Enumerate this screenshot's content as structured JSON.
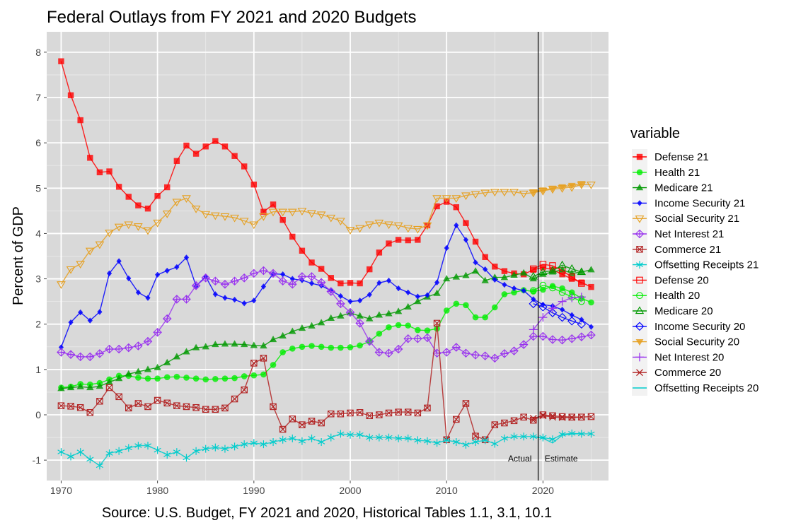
{
  "chart_data": {
    "type": "line",
    "title": "Federal Outlays from FY 2021 and 2020 Budgets",
    "caption": "Source: U.S. Budget, FY 2021 and 2020, Historical Tables 1.1, 3.1, 10.1",
    "xlabel": "",
    "ylabel": "Percent of GDP",
    "xlim": [
      1968.5,
      2026.8
    ],
    "ylim": [
      -1.45,
      8.45
    ],
    "x_ticks": [
      1970,
      1980,
      1990,
      2000,
      2010,
      2020
    ],
    "x_tick_labels": [
      "1970",
      "1980",
      "1990",
      "2000",
      "2010",
      "2020"
    ],
    "y_ticks": [
      -1,
      0,
      1,
      2,
      3,
      4,
      5,
      6,
      7,
      8
    ],
    "y_tick_labels": [
      "-1",
      "0",
      "1",
      "2",
      "3",
      "4",
      "5",
      "6",
      "7",
      "8"
    ],
    "grid": true,
    "legend_title": "variable",
    "legend_position": "right",
    "vline": {
      "x": 2019.5
    },
    "annotations": [
      {
        "text": "Actual",
        "x": 2017.6,
        "y": -1.03
      },
      {
        "text": "Estimate",
        "x": 2021.9,
        "y": -1.03
      }
    ],
    "series": [
      {
        "name": "Defense 21",
        "color": "#ff0000",
        "shape": "square-filled",
        "x": [
          1970,
          1971,
          1972,
          1973,
          1974,
          1975,
          1976,
          1977,
          1978,
          1979,
          1980,
          1981,
          1982,
          1983,
          1984,
          1985,
          1986,
          1987,
          1988,
          1989,
          1990,
          1991,
          1992,
          1993,
          1994,
          1995,
          1996,
          1997,
          1998,
          1999,
          2000,
          2001,
          2002,
          2003,
          2004,
          2005,
          2006,
          2007,
          2008,
          2009,
          2010,
          2011,
          2012,
          2013,
          2014,
          2015,
          2016,
          2017,
          2018,
          2019,
          2020,
          2021,
          2022,
          2023,
          2024,
          2025
        ],
        "values": [
          7.8,
          7.05,
          6.5,
          5.67,
          5.35,
          5.37,
          5.03,
          4.81,
          4.62,
          4.55,
          4.83,
          5.02,
          5.6,
          5.94,
          5.76,
          5.92,
          6.04,
          5.92,
          5.71,
          5.48,
          5.08,
          4.48,
          4.64,
          4.3,
          3.93,
          3.62,
          3.36,
          3.22,
          3.02,
          2.9,
          2.91,
          2.9,
          3.21,
          3.58,
          3.78,
          3.86,
          3.85,
          3.86,
          4.18,
          4.6,
          4.7,
          4.58,
          4.23,
          3.82,
          3.48,
          3.27,
          3.17,
          3.12,
          3.1,
          3.2,
          3.25,
          3.2,
          3.1,
          3.0,
          2.92,
          2.82
        ]
      },
      {
        "name": "Health 21",
        "color": "#00ee00",
        "shape": "circle-filled",
        "x": [
          1970,
          1971,
          1972,
          1973,
          1974,
          1975,
          1976,
          1977,
          1978,
          1979,
          1980,
          1981,
          1982,
          1983,
          1984,
          1985,
          1986,
          1987,
          1988,
          1989,
          1990,
          1991,
          1992,
          1993,
          1994,
          1995,
          1996,
          1997,
          1998,
          1999,
          2000,
          2001,
          2002,
          2003,
          2004,
          2005,
          2006,
          2007,
          2008,
          2009,
          2010,
          2011,
          2012,
          2013,
          2014,
          2015,
          2016,
          2017,
          2018,
          2019,
          2020,
          2021,
          2022,
          2023,
          2024,
          2025
        ],
        "values": [
          0.6,
          0.62,
          0.68,
          0.67,
          0.7,
          0.78,
          0.86,
          0.86,
          0.82,
          0.8,
          0.8,
          0.83,
          0.84,
          0.82,
          0.8,
          0.78,
          0.79,
          0.8,
          0.81,
          0.85,
          0.87,
          0.89,
          1.1,
          1.38,
          1.46,
          1.5,
          1.52,
          1.5,
          1.48,
          1.48,
          1.49,
          1.53,
          1.62,
          1.79,
          1.93,
          1.98,
          1.97,
          1.87,
          1.86,
          1.9,
          2.3,
          2.45,
          2.42,
          2.15,
          2.15,
          2.37,
          2.66,
          2.7,
          2.75,
          2.72,
          2.76,
          2.84,
          2.79,
          2.7,
          2.57,
          2.48
        ]
      },
      {
        "name": "Medicare 21",
        "color": "#009900",
        "shape": "triangle-filled",
        "x": [
          1970,
          1971,
          1972,
          1973,
          1974,
          1975,
          1976,
          1977,
          1978,
          1979,
          1980,
          1981,
          1982,
          1983,
          1984,
          1985,
          1986,
          1987,
          1988,
          1989,
          1990,
          1991,
          1992,
          1993,
          1994,
          1995,
          1996,
          1997,
          1998,
          1999,
          2000,
          2001,
          2002,
          2003,
          2004,
          2005,
          2006,
          2007,
          2008,
          2009,
          2010,
          2011,
          2012,
          2013,
          2014,
          2015,
          2016,
          2017,
          2018,
          2019,
          2020,
          2021,
          2022,
          2023,
          2024,
          2025
        ],
        "values": [
          0.58,
          0.6,
          0.62,
          0.6,
          0.63,
          0.72,
          0.8,
          0.9,
          0.95,
          1.0,
          1.04,
          1.15,
          1.28,
          1.39,
          1.48,
          1.5,
          1.55,
          1.56,
          1.56,
          1.55,
          1.53,
          1.52,
          1.66,
          1.74,
          1.84,
          1.91,
          1.96,
          2.03,
          2.13,
          2.18,
          2.25,
          2.18,
          2.12,
          2.2,
          2.23,
          2.28,
          2.38,
          2.5,
          2.6,
          2.68,
          3.0,
          3.04,
          3.07,
          3.17,
          2.96,
          3.03,
          3.03,
          3.08,
          3.13,
          3.0,
          3.1,
          3.15,
          3.2,
          3.12,
          3.15,
          3.2
        ]
      },
      {
        "name": "Income Security 21",
        "color": "#0000ff",
        "shape": "diamond-filled",
        "x": [
          1970,
          1971,
          1972,
          1973,
          1974,
          1975,
          1976,
          1977,
          1978,
          1979,
          1980,
          1981,
          1982,
          1983,
          1984,
          1985,
          1986,
          1987,
          1988,
          1989,
          1990,
          1991,
          1992,
          1993,
          1994,
          1995,
          1996,
          1997,
          1998,
          1999,
          2000,
          2001,
          2002,
          2003,
          2004,
          2005,
          2006,
          2007,
          2008,
          2009,
          2010,
          2011,
          2012,
          2013,
          2014,
          2015,
          2016,
          2017,
          2018,
          2019,
          2020,
          2021,
          2022,
          2023,
          2024,
          2025
        ],
        "values": [
          1.49,
          2.04,
          2.26,
          2.08,
          2.27,
          3.12,
          3.39,
          3.01,
          2.7,
          2.58,
          3.09,
          3.18,
          3.26,
          3.47,
          2.84,
          3.05,
          2.66,
          2.58,
          2.54,
          2.46,
          2.52,
          2.83,
          3.11,
          3.1,
          3.0,
          2.97,
          2.9,
          2.85,
          2.74,
          2.62,
          2.5,
          2.52,
          2.65,
          2.91,
          2.96,
          2.79,
          2.7,
          2.61,
          2.64,
          2.92,
          3.68,
          4.18,
          3.86,
          3.36,
          3.21,
          2.98,
          2.87,
          2.79,
          2.74,
          2.55,
          2.43,
          2.4,
          2.32,
          2.2,
          2.1,
          1.94
        ]
      },
      {
        "name": "Social Security 21",
        "color": "#e6a020",
        "shape": "triangle-down-open",
        "x": [
          1970,
          1971,
          1972,
          1973,
          1974,
          1975,
          1976,
          1977,
          1978,
          1979,
          1980,
          1981,
          1982,
          1983,
          1984,
          1985,
          1986,
          1987,
          1988,
          1989,
          1990,
          1991,
          1992,
          1993,
          1994,
          1995,
          1996,
          1997,
          1998,
          1999,
          2000,
          2001,
          2002,
          2003,
          2004,
          2005,
          2006,
          2007,
          2008,
          2009,
          2010,
          2011,
          2012,
          2013,
          2014,
          2015,
          2016,
          2017,
          2018,
          2019,
          2020,
          2021,
          2022,
          2023,
          2024,
          2025
        ],
        "values": [
          2.88,
          3.21,
          3.33,
          3.62,
          3.76,
          4.02,
          4.15,
          4.2,
          4.16,
          4.07,
          4.24,
          4.44,
          4.7,
          4.78,
          4.55,
          4.43,
          4.4,
          4.38,
          4.35,
          4.28,
          4.2,
          4.38,
          4.48,
          4.48,
          4.48,
          4.5,
          4.45,
          4.42,
          4.35,
          4.28,
          4.08,
          4.12,
          4.2,
          4.24,
          4.2,
          4.18,
          4.12,
          4.1,
          4.18,
          4.78,
          4.78,
          4.78,
          4.84,
          4.87,
          4.9,
          4.92,
          4.92,
          4.92,
          4.88,
          4.9,
          4.94,
          4.98,
          5.0,
          5.02,
          5.08,
          5.08
        ]
      },
      {
        "name": "Net Interest 21",
        "color": "#9933ee",
        "shape": "diamond-plus",
        "x": [
          1970,
          1971,
          1972,
          1973,
          1974,
          1975,
          1976,
          1977,
          1978,
          1979,
          1980,
          1981,
          1982,
          1983,
          1984,
          1985,
          1986,
          1987,
          1988,
          1989,
          1990,
          1991,
          1992,
          1993,
          1994,
          1995,
          1996,
          1997,
          1998,
          1999,
          2000,
          2001,
          2002,
          2003,
          2004,
          2005,
          2006,
          2007,
          2008,
          2009,
          2010,
          2011,
          2012,
          2013,
          2014,
          2015,
          2016,
          2017,
          2018,
          2019,
          2020,
          2021,
          2022,
          2023,
          2024,
          2025
        ],
        "values": [
          1.38,
          1.33,
          1.28,
          1.28,
          1.35,
          1.45,
          1.45,
          1.48,
          1.52,
          1.62,
          1.82,
          2.12,
          2.55,
          2.55,
          2.85,
          3.02,
          2.95,
          2.88,
          2.95,
          3.02,
          3.12,
          3.18,
          3.12,
          2.95,
          2.88,
          3.05,
          3.05,
          2.92,
          2.72,
          2.45,
          2.26,
          2.02,
          1.62,
          1.38,
          1.36,
          1.45,
          1.68,
          1.68,
          1.7,
          1.36,
          1.38,
          1.49,
          1.36,
          1.32,
          1.3,
          1.25,
          1.35,
          1.41,
          1.55,
          1.73,
          1.73,
          1.66,
          1.65,
          1.68,
          1.72,
          1.76
        ]
      },
      {
        "name": "Commerce 21",
        "color": "#b22222",
        "shape": "square-x",
        "x": [
          1970,
          1971,
          1972,
          1973,
          1974,
          1975,
          1976,
          1977,
          1978,
          1979,
          1980,
          1981,
          1982,
          1983,
          1984,
          1985,
          1986,
          1987,
          1988,
          1989,
          1990,
          1991,
          1992,
          1993,
          1994,
          1995,
          1996,
          1997,
          1998,
          1999,
          2000,
          2001,
          2002,
          2003,
          2004,
          2005,
          2006,
          2007,
          2008,
          2009,
          2010,
          2011,
          2012,
          2013,
          2014,
          2015,
          2016,
          2017,
          2018,
          2019,
          2020,
          2021,
          2022,
          2023,
          2024,
          2025
        ],
        "values": [
          0.2,
          0.19,
          0.16,
          0.05,
          0.3,
          0.6,
          0.4,
          0.15,
          0.25,
          0.18,
          0.32,
          0.26,
          0.2,
          0.18,
          0.16,
          0.12,
          0.12,
          0.15,
          0.35,
          0.55,
          1.14,
          1.25,
          0.18,
          -0.32,
          -0.09,
          -0.22,
          -0.14,
          -0.18,
          0.02,
          0.02,
          0.04,
          0.05,
          -0.02,
          0.0,
          0.04,
          0.06,
          0.06,
          0.04,
          0.15,
          2.02,
          -0.55,
          -0.1,
          0.25,
          -0.47,
          -0.55,
          -0.22,
          -0.18,
          -0.13,
          -0.05,
          -0.12,
          0.0,
          -0.02,
          -0.04,
          -0.05,
          -0.05,
          -0.04
        ]
      },
      {
        "name": "Offsetting Receipts 21",
        "color": "#00cccc",
        "shape": "asterisk",
        "x": [
          1970,
          1971,
          1972,
          1973,
          1974,
          1975,
          1976,
          1977,
          1978,
          1979,
          1980,
          1981,
          1982,
          1983,
          1984,
          1985,
          1986,
          1987,
          1988,
          1989,
          1990,
          1991,
          1992,
          1993,
          1994,
          1995,
          1996,
          1997,
          1998,
          1999,
          2000,
          2001,
          2002,
          2003,
          2004,
          2005,
          2006,
          2007,
          2008,
          2009,
          2010,
          2011,
          2012,
          2013,
          2014,
          2015,
          2016,
          2017,
          2018,
          2019,
          2020,
          2021,
          2022,
          2023,
          2024,
          2025
        ],
        "values": [
          -0.82,
          -0.92,
          -0.82,
          -0.98,
          -1.12,
          -0.85,
          -0.8,
          -0.73,
          -0.68,
          -0.68,
          -0.78,
          -0.88,
          -0.82,
          -0.95,
          -0.8,
          -0.75,
          -0.72,
          -0.75,
          -0.7,
          -0.65,
          -0.62,
          -0.65,
          -0.6,
          -0.55,
          -0.52,
          -0.58,
          -0.52,
          -0.6,
          -0.5,
          -0.42,
          -0.44,
          -0.44,
          -0.5,
          -0.5,
          -0.5,
          -0.52,
          -0.52,
          -0.56,
          -0.58,
          -0.62,
          -0.56,
          -0.6,
          -0.66,
          -0.6,
          -0.56,
          -0.64,
          -0.52,
          -0.48,
          -0.48,
          -0.48,
          -0.5,
          -0.54,
          -0.43,
          -0.41,
          -0.42,
          -0.42
        ]
      },
      {
        "name": "Defense 20",
        "color": "#ff0000",
        "shape": "square-open",
        "x": [
          2019,
          2020,
          2021,
          2022,
          2023,
          2024
        ],
        "values": [
          3.22,
          3.32,
          3.29,
          3.18,
          3.04,
          2.9
        ]
      },
      {
        "name": "Health 20",
        "color": "#00ee00",
        "shape": "circle-open",
        "x": [
          2019,
          2020,
          2021,
          2022,
          2023,
          2024
        ],
        "values": [
          2.74,
          2.86,
          2.8,
          2.7,
          2.6,
          2.5
        ]
      },
      {
        "name": "Medicare 20",
        "color": "#009900",
        "shape": "triangle-open",
        "x": [
          2019,
          2020,
          2021,
          2022,
          2023,
          2024
        ],
        "values": [
          3.05,
          3.15,
          3.18,
          3.3,
          3.22,
          3.15
        ]
      },
      {
        "name": "Income Security 20",
        "color": "#0000ff",
        "shape": "diamond-open",
        "x": [
          2019,
          2020,
          2021,
          2022,
          2023,
          2024
        ],
        "values": [
          2.45,
          2.38,
          2.25,
          2.15,
          2.07,
          2.0
        ]
      },
      {
        "name": "Social Security 20",
        "color": "#e6a020",
        "shape": "triangle-down-filled",
        "x": [
          2019,
          2020,
          2021,
          2022,
          2023,
          2024
        ],
        "values": [
          4.92,
          4.96,
          5.0,
          5.03,
          5.06,
          5.1
        ]
      },
      {
        "name": "Net Interest 20",
        "color": "#9933ee",
        "shape": "plus",
        "x": [
          2019,
          2020,
          2021,
          2022,
          2023,
          2024
        ],
        "values": [
          1.88,
          2.15,
          2.35,
          2.5,
          2.58,
          2.6
        ]
      },
      {
        "name": "Commerce 20",
        "color": "#b22222",
        "shape": "x",
        "x": [
          2019,
          2020,
          2021,
          2022,
          2023,
          2024
        ],
        "values": [
          -0.08,
          -0.02,
          -0.05,
          -0.06,
          -0.06,
          -0.05
        ]
      },
      {
        "name": "Offsetting Receipts 20",
        "color": "#00cccc",
        "shape": "line-only",
        "x": [
          2019,
          2020,
          2021,
          2022,
          2023,
          2024
        ],
        "values": [
          -0.48,
          -0.52,
          -0.62,
          -0.45,
          -0.42,
          -0.42
        ]
      }
    ]
  }
}
